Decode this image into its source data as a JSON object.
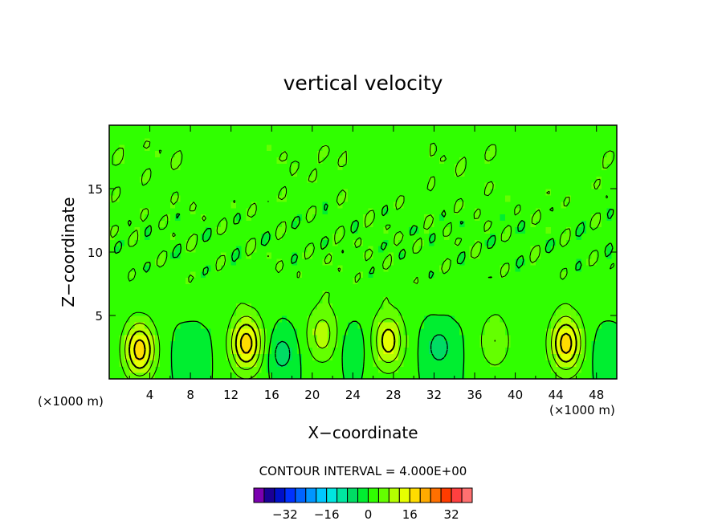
{
  "chart_data": {
    "type": "heatmap",
    "title": "vertical velocity",
    "xlabel": "X−coordinate",
    "ylabel": "Z−coordinate",
    "x_unit_left": "(×1000 m)",
    "x_unit_right": "(×1000 m)",
    "xlim": [
      0,
      50
    ],
    "ylim": [
      0,
      20
    ],
    "xticks": [
      4,
      8,
      12,
      16,
      20,
      24,
      28,
      32,
      36,
      40,
      44,
      48
    ],
    "yticks": [
      5,
      10,
      15
    ],
    "contour_interval_label": "CONTOUR INTERVAL = 4.000E+00",
    "contour_interval": 4,
    "colorbar": {
      "levels": [
        -40,
        -36,
        -32,
        -28,
        -24,
        -20,
        -16,
        -12,
        -8,
        -4,
        0,
        4,
        8,
        12,
        16,
        20,
        24,
        28,
        32,
        36,
        40
      ],
      "tick_labels": [
        "−32",
        "−16",
        "0",
        "16",
        "32"
      ],
      "tick_values": [
        -32,
        -16,
        0,
        16,
        32
      ],
      "colors": [
        "#7a00b0",
        "#1a0096",
        "#0010c8",
        "#0032ff",
        "#0064ff",
        "#0096ff",
        "#00c8ff",
        "#00e6e0",
        "#00e6a0",
        "#00dc64",
        "#00ee30",
        "#30ff00",
        "#64ff00",
        "#b4ff00",
        "#e6ff00",
        "#ffdc00",
        "#ffaa00",
        "#ff7000",
        "#ff3c00",
        "#ff4040",
        "#ff7070",
        "#ffa0a0"
      ]
    },
    "updraft_cores": [
      {
        "x": 3,
        "z": 2.3,
        "w": 18
      },
      {
        "x": 13.5,
        "z": 2.8,
        "w": 18
      },
      {
        "x": 21,
        "z": 3.5,
        "w": 10
      },
      {
        "x": 27.5,
        "z": 3.0,
        "w": 14
      },
      {
        "x": 38,
        "z": 3.0,
        "w": 8
      },
      {
        "x": 45,
        "z": 2.8,
        "w": 18
      }
    ],
    "downdraft_cores": [
      {
        "x": 17,
        "z": 2.0,
        "w": -6
      },
      {
        "x": 32.5,
        "z": 2.5,
        "w": -6
      },
      {
        "x": 8,
        "z": 2.0,
        "w": -3
      },
      {
        "x": 24,
        "z": 2.5,
        "w": -3
      },
      {
        "x": 49,
        "z": 2.0,
        "w": -3
      }
    ]
  }
}
